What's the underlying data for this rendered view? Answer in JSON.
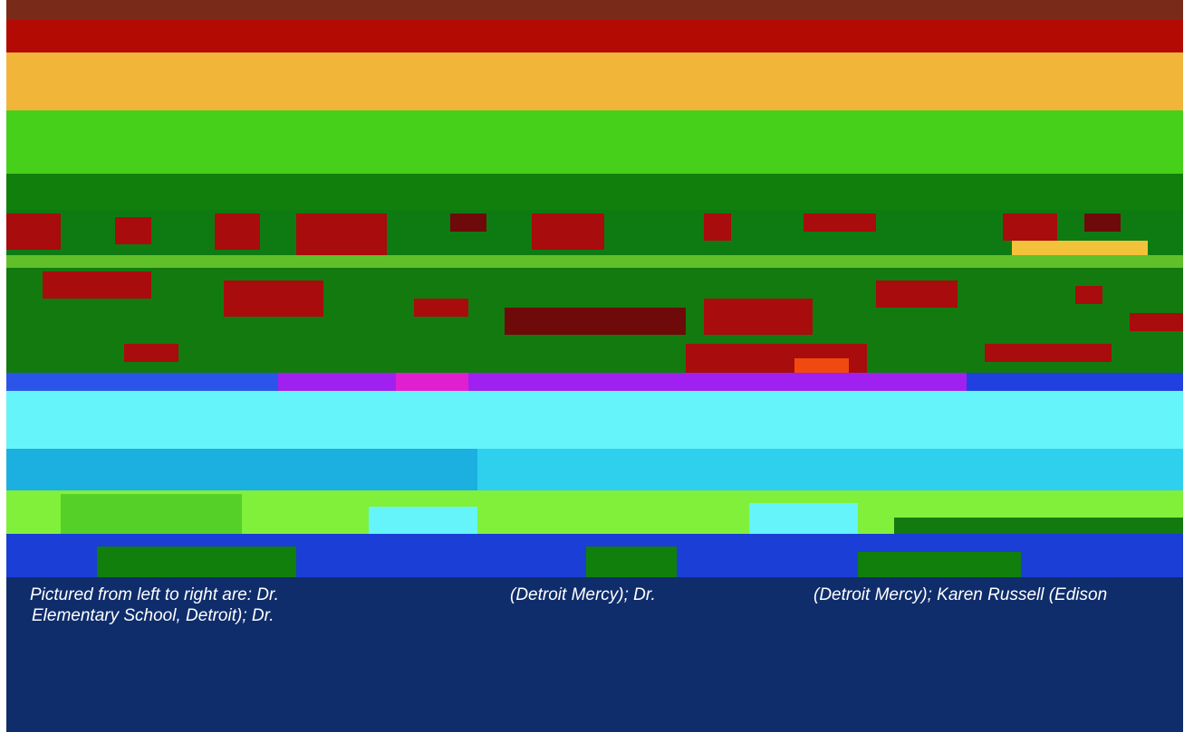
{
  "photo": {
    "icon": "photo-image"
  },
  "caption": {
    "line1": {
      "part1": "Pictured from left to right are: Dr.",
      "part2": "(Detroit Mercy); Dr.",
      "part3": "(Detroit Mercy); Karen Russell (Edison"
    },
    "line2": {
      "part1": "Elementary School, Detroit); Dr."
    },
    "background_color": "#0f2d6b",
    "text_color": "#ffffff"
  }
}
